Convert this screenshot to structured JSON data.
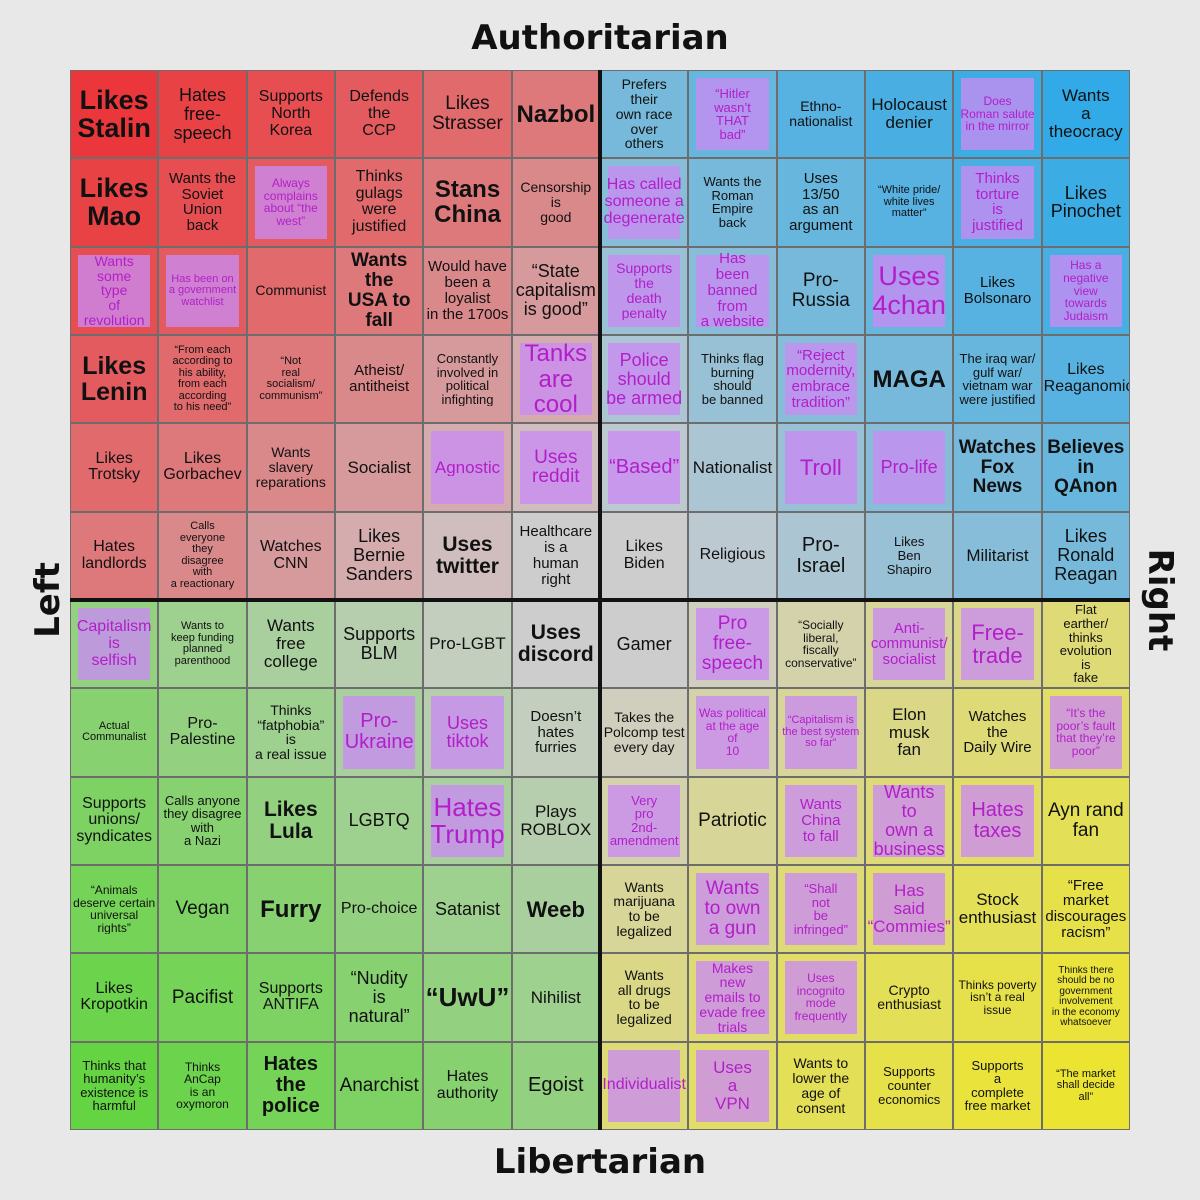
{
  "axes": {
    "top": "Authoritarian",
    "bottom": "Libertarian",
    "left": "Left",
    "right": "Right"
  },
  "grid": {
    "rows": [
      [
        {
          "text": "Likes\nStalin",
          "size": 27,
          "bold": true
        },
        {
          "text": "Hates\nfree-speech",
          "size": 18
        },
        {
          "text": "Supports\nNorth\nKorea",
          "size": 16
        },
        {
          "text": "Defends\nthe\nCCP",
          "size": 16
        },
        {
          "text": "Likes\nStrasser",
          "size": 19
        },
        {
          "text": "Nazbol",
          "size": 24,
          "bold": true
        },
        {
          "text": "Prefers\ntheir\nown race\nover\nothers",
          "size": 14
        },
        {
          "text": "“Hitler\nwasn’t\nTHAT\nbad”",
          "size": 13,
          "hl": true
        },
        {
          "text": "Ethno-\nnationalist",
          "size": 14
        },
        {
          "text": "Holocaust\ndenier",
          "size": 17
        },
        {
          "text": "Does\nRoman salute\nin the mirror",
          "size": 12,
          "hl": true
        },
        {
          "text": "Wants\na\ntheocracy",
          "size": 17
        }
      ],
      [
        {
          "text": "Likes\nMao",
          "size": 27,
          "bold": true
        },
        {
          "text": "Wants the\nSoviet Union\nback",
          "size": 15
        },
        {
          "text": "Always\ncomplains\nabout “the\nwest”",
          "size": 12,
          "hl": true
        },
        {
          "text": "Thinks\ngulags\nwere\njustified",
          "size": 16
        },
        {
          "text": "Stans\nChina",
          "size": 24,
          "bold": true
        },
        {
          "text": "Censorship\nis\ngood",
          "size": 14
        },
        {
          "text": "Has called\nsomeone a\ndegenerate",
          "size": 16,
          "hl": true
        },
        {
          "text": "Wants the\nRoman Empire\nback",
          "size": 13
        },
        {
          "text": "Uses\n13/50\nas an\nargument",
          "size": 15
        },
        {
          "text": "“White pride/\nwhite lives\nmatter”",
          "size": 11
        },
        {
          "text": "Thinks\ntorture\nis\njustified",
          "size": 15,
          "hl": true
        },
        {
          "text": "Likes\nPinochet",
          "size": 18
        }
      ],
      [
        {
          "text": "Wants\nsome\ntype\nof\nrevolution",
          "size": 14,
          "hl": true
        },
        {
          "text": "Has been on\na government\nwatchlist",
          "size": 11,
          "hl": true
        },
        {
          "text": "Communist",
          "size": 14
        },
        {
          "text": "Wants\nthe\nUSA to\nfall",
          "size": 19,
          "bold": true
        },
        {
          "text": "Would have\nbeen a\nloyalist\nin the 1700s",
          "size": 15
        },
        {
          "text": "“State\ncapitalism\nis good”",
          "size": 18
        },
        {
          "text": "Supports\nthe\ndeath\npenalty",
          "size": 14,
          "hl": true
        },
        {
          "text": "Has\nbeen\nbanned\nfrom\na website",
          "size": 15,
          "hl": true
        },
        {
          "text": "Pro-\nRussia",
          "size": 19
        },
        {
          "text": "Uses\n4chan",
          "size": 27,
          "hl": true
        },
        {
          "text": "Likes\nBolsonaro",
          "size": 15
        },
        {
          "text": "Has a\nnegative\nview\ntowards\nJudaism",
          "size": 12,
          "hl": true
        }
      ],
      [
        {
          "text": "Likes\nLenin",
          "size": 25,
          "bold": true
        },
        {
          "text": "“From each\naccording to\nhis ability,\nfrom each\naccording\nto his need”",
          "size": 11
        },
        {
          "text": "“Not\nreal\nsocialism/\ncommunism”",
          "size": 11
        },
        {
          "text": "Atheist/\nantitheist",
          "size": 15
        },
        {
          "text": "Constantly\ninvolved in\npolitical\ninfighting",
          "size": 13
        },
        {
          "text": "Tanks\nare\ncool",
          "size": 24,
          "hl": true
        },
        {
          "text": "Police\nshould\nbe armed",
          "size": 18,
          "hl": true
        },
        {
          "text": "Thinks flag\nburning\nshould\nbe banned",
          "size": 13
        },
        {
          "text": "“Reject\nmodernity,\nembrace\ntradition”",
          "size": 15,
          "hl": true
        },
        {
          "text": "MAGA",
          "size": 24,
          "bold": true
        },
        {
          "text": "The iraq war/\ngulf war/\nvietnam war\nwere justified",
          "size": 13
        },
        {
          "text": "Likes\nReaganomics",
          "size": 16
        }
      ],
      [
        {
          "text": "Likes\nTrotsky",
          "size": 16
        },
        {
          "text": "Likes\nGorbachev",
          "size": 16
        },
        {
          "text": "Wants\nslavery\nreparations",
          "size": 14
        },
        {
          "text": "Socialist",
          "size": 17
        },
        {
          "text": "Agnostic",
          "size": 17,
          "hl": true
        },
        {
          "text": "Uses\nreddit",
          "size": 19,
          "hl": true
        },
        {
          "text": "“Based”",
          "size": 20,
          "hl": true
        },
        {
          "text": "Nationalist",
          "size": 17
        },
        {
          "text": "Troll",
          "size": 22,
          "hl": true
        },
        {
          "text": "Pro-life",
          "size": 18,
          "hl": true
        },
        {
          "text": "Watches\nFox\nNews",
          "size": 19,
          "bold": true
        },
        {
          "text": "Believes\nin\nQAnon",
          "size": 19,
          "bold": true
        }
      ],
      [
        {
          "text": "Hates\nlandlords",
          "size": 16
        },
        {
          "text": "Calls\neveryone\nthey\ndisagree\nwith\na reactionary",
          "size": 11
        },
        {
          "text": "Watches\nCNN",
          "size": 16
        },
        {
          "text": "Likes\nBernie\nSanders",
          "size": 18
        },
        {
          "text": "Uses\ntwitter",
          "size": 21,
          "bold": true
        },
        {
          "text": "Healthcare\nis a\nhuman\nright",
          "size": 15
        },
        {
          "text": "Likes\nBiden",
          "size": 16
        },
        {
          "text": "Religious",
          "size": 16
        },
        {
          "text": "Pro-\nIsrael",
          "size": 20
        },
        {
          "text": "Likes\nBen\nShapiro",
          "size": 13
        },
        {
          "text": "Militarist",
          "size": 17
        },
        {
          "text": "Likes\nRonald\nReagan",
          "size": 18
        }
      ],
      [
        {
          "text": "Capitalism\nis\nselfish",
          "size": 16,
          "hl": true
        },
        {
          "text": "Wants to\nkeep funding\nplanned\nparenthood",
          "size": 11
        },
        {
          "text": "Wants\nfree\ncollege",
          "size": 17
        },
        {
          "text": "Supports\nBLM",
          "size": 18
        },
        {
          "text": "Pro-LGBT",
          "size": 17
        },
        {
          "text": "Uses\ndiscord",
          "size": 21,
          "bold": true
        },
        {
          "text": "Gamer",
          "size": 18
        },
        {
          "text": "Pro\nfree-\nspeech",
          "size": 19,
          "hl": true
        },
        {
          "text": "“Socially\nliberal,\nfiscally\nconservative”",
          "size": 12
        },
        {
          "text": "Anti-\ncommunist/\nsocialist",
          "size": 15,
          "hl": true
        },
        {
          "text": "Free-\ntrade",
          "size": 22,
          "hl": true
        },
        {
          "text": "Flat\nearther/\nthinks\nevolution\nis\nfake",
          "size": 13
        }
      ],
      [
        {
          "text": "Actual\nCommunalist",
          "size": 11
        },
        {
          "text": "Pro-\nPalestine",
          "size": 16
        },
        {
          "text": "Thinks\n“fatphobia”\nis\na real issue",
          "size": 14
        },
        {
          "text": "Pro-\nUkraine",
          "size": 20,
          "hl": true
        },
        {
          "text": "Uses\ntiktok",
          "size": 18,
          "hl": true
        },
        {
          "text": "Doesn’t\nhates\nfurries",
          "size": 15
        },
        {
          "text": "Takes the\nPolcomp test\nevery day",
          "size": 14
        },
        {
          "text": "Was political\nat the age\nof\n10",
          "size": 12,
          "hl": true
        },
        {
          "text": "“Capitalism is\nthe best system\nso far”",
          "size": 11,
          "hl": true
        },
        {
          "text": "Elon\nmusk\nfan",
          "size": 17
        },
        {
          "text": "Watches\nthe\nDaily Wire",
          "size": 15
        },
        {
          "text": "“It’s the\npoor’s fault\nthat they’re\npoor”",
          "size": 12,
          "hl": true
        }
      ],
      [
        {
          "text": "Supports\nunions/\nsyndicates",
          "size": 16
        },
        {
          "text": "Calls anyone\nthey disagree\nwith\na Nazi",
          "size": 13
        },
        {
          "text": "Likes\nLula",
          "size": 21,
          "bold": true
        },
        {
          "text": "LGBTQ",
          "size": 18
        },
        {
          "text": "Hates\nTrump",
          "size": 26,
          "hl": true
        },
        {
          "text": "Plays\nROBLOX",
          "size": 17
        },
        {
          "text": "Very\npro\n2nd-\namendment",
          "size": 13,
          "hl": true
        },
        {
          "text": "Patriotic",
          "size": 19
        },
        {
          "text": "Wants\nChina\nto fall",
          "size": 15,
          "hl": true
        },
        {
          "text": "Wants\nto\nown a\nbusiness",
          "size": 18,
          "hl": true
        },
        {
          "text": "Hates\ntaxes",
          "size": 20,
          "hl": true
        },
        {
          "text": "Ayn rand\nfan",
          "size": 19
        }
      ],
      [
        {
          "text": "“Animals\ndeserve certain\nuniversal\nrights”",
          "size": 12
        },
        {
          "text": "Vegan",
          "size": 19
        },
        {
          "text": "Furry",
          "size": 24,
          "bold": true
        },
        {
          "text": "Pro-choice",
          "size": 16
        },
        {
          "text": "Satanist",
          "size": 18
        },
        {
          "text": "Weeb",
          "size": 22,
          "bold": true
        },
        {
          "text": "Wants\nmarijuana\nto be\nlegalized",
          "size": 14
        },
        {
          "text": "Wants\nto own\na gun",
          "size": 19,
          "hl": true
        },
        {
          "text": "“Shall\nnot\nbe\ninfringed”",
          "size": 13,
          "hl": true
        },
        {
          "text": "Has\nsaid\n“Commies”",
          "size": 17,
          "hl": true
        },
        {
          "text": "Stock\nenthusiast",
          "size": 17
        },
        {
          "text": "“Free\nmarket\ndiscourages\nracism”",
          "size": 15
        }
      ],
      [
        {
          "text": "Likes\nKropotkin",
          "size": 16
        },
        {
          "text": "Pacifist",
          "size": 19
        },
        {
          "text": "Supports\nANTIFA",
          "size": 16
        },
        {
          "text": "“Nudity\nis\nnatural”",
          "size": 18
        },
        {
          "text": "“UwU”",
          "size": 26,
          "bold": true
        },
        {
          "text": "Nihilist",
          "size": 17
        },
        {
          "text": "Wants\nall drugs\nto be\nlegalized",
          "size": 14
        },
        {
          "text": "Makes\nnew\nemails to\nevade free\ntrials",
          "size": 14,
          "hl": true
        },
        {
          "text": "Uses\nincognito\nmode\nfrequently",
          "size": 12,
          "hl": true
        },
        {
          "text": "Crypto\nenthusiast",
          "size": 14
        },
        {
          "text": "Thinks poverty\nisn’t a real\nissue",
          "size": 12
        },
        {
          "text": "Thinks there\nshould be no\ngovernment\ninvolvement\nin the economy\nwhatsoever",
          "size": 10
        }
      ],
      [
        {
          "text": "Thinks that\nhumanity’s\nexistence is\nharmful",
          "size": 13
        },
        {
          "text": "Thinks\nAnCap\nis an\noxymoron",
          "size": 12
        },
        {
          "text": "Hates\nthe\npolice",
          "size": 20,
          "bold": true
        },
        {
          "text": "Anarchist",
          "size": 19
        },
        {
          "text": "Hates\nauthority",
          "size": 16
        },
        {
          "text": "Egoist",
          "size": 20
        },
        {
          "text": "Individualist",
          "size": 16,
          "hl": true
        },
        {
          "text": "Uses\na\nVPN",
          "size": 17,
          "hl": true
        },
        {
          "text": "Wants to\nlower the\nage of\nconsent",
          "size": 14
        },
        {
          "text": "Supports\ncounter\neconomics",
          "size": 13
        },
        {
          "text": "Supports\na\ncomplete\nfree market",
          "size": 13
        },
        {
          "text": "“The market\nshall decide\nall”",
          "size": 11
        }
      ]
    ]
  }
}
